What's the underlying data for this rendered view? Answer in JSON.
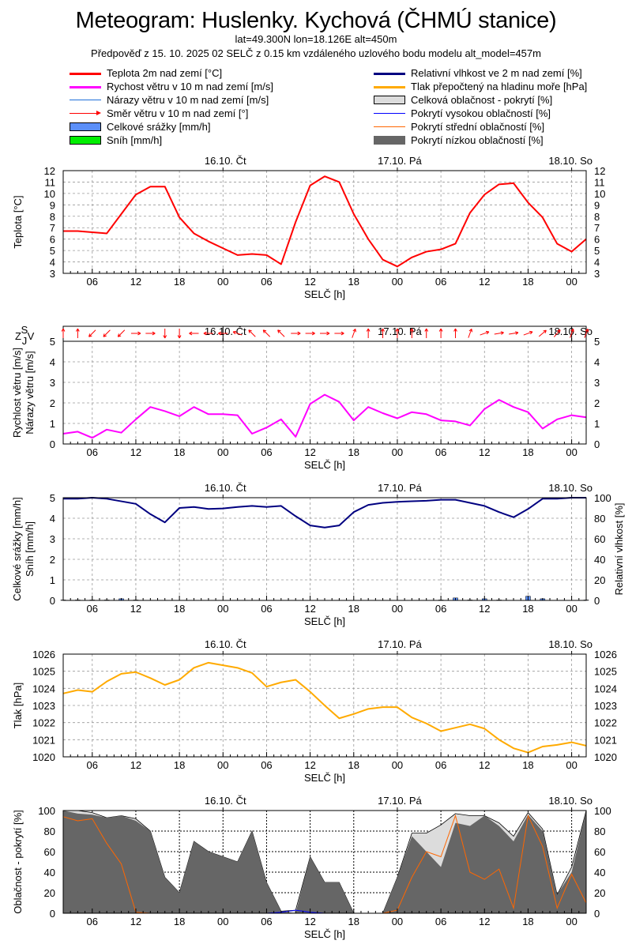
{
  "header": {
    "title": "Meteogram: Huslenky. Kychová (ČHMÚ stanice)",
    "location": "lat=49.300N lon=18.126E alt=450m",
    "forecast_info": "Předpověď z 15. 10. 2025 02 SELČ z 0.15 km vzdáleného uzlového bodu modelu alt_model=457m"
  },
  "legend": {
    "left": [
      {
        "label": "Teplota 2m nad zemí [°C]",
        "color": "#ff0000",
        "style": "thick-line"
      },
      {
        "label": "Rychost větru v 10 m nad zemí [m/s]",
        "color": "#ff00ff",
        "style": "thick-line"
      },
      {
        "label": "Nárazy větru v 10 m nad zemí [m/s]",
        "color": "#1e6fd9",
        "style": "thin-line"
      },
      {
        "label": "Směr větru v 10 m nad zemí [°]",
        "color": "#ff0000",
        "style": "arrow"
      },
      {
        "label": "Celkové srážky [mm/h]",
        "color": "#5b8ff9",
        "style": "box"
      },
      {
        "label": "Sníh [mm/h]",
        "color": "#00ee00",
        "style": "box"
      }
    ],
    "right": [
      {
        "label": "Relativní vlhkost ve 2 m nad zemí [%]",
        "color": "#000080",
        "style": "thick-line"
      },
      {
        "label": "Tlak přepočtený na hladinu moře [hPa]",
        "color": "#ffaa00",
        "style": "thick-line"
      },
      {
        "label": "Celková oblačnost - pokrytí [%]",
        "color": "#dcdcdc",
        "style": "box"
      },
      {
        "label": "Pokrytí vysokou oblačností [%]",
        "color": "#0000ff",
        "style": "thin-line"
      },
      {
        "label": "Pokrytí střední oblačností [%]",
        "color": "#ff6600",
        "style": "thin-line"
      },
      {
        "label": "Pokrytí nízkou oblačností [%]",
        "color": "#666666",
        "style": "fill"
      }
    ]
  },
  "axes": {
    "x_label": "SELČ [h]",
    "x_tick_labels": [
      "06",
      "12",
      "18",
      "00",
      "06",
      "12",
      "18",
      "00",
      "06",
      "12",
      "18",
      "00"
    ],
    "day_labels": [
      "16.10. Čt",
      "17.10. Pá",
      "18.10. So"
    ],
    "compass_labels": {
      "n": "S",
      "w": "Z",
      "s": "J",
      "e": "V"
    }
  },
  "chart_data": [
    {
      "type": "line",
      "x": [
        "15.10. 02",
        "15.10. 04",
        "15.10. 06",
        "15.10. 08",
        "15.10. 10",
        "15.10. 12",
        "15.10. 14",
        "15.10. 16",
        "15.10. 18",
        "15.10. 20",
        "15.10. 22",
        "16.10. 00",
        "16.10. 02",
        "16.10. 04",
        "16.10. 06",
        "16.10. 08",
        "16.10. 10",
        "16.10. 12",
        "16.10. 14",
        "16.10. 16",
        "16.10. 18",
        "16.10. 20",
        "16.10. 22",
        "17.10. 00",
        "17.10. 02",
        "17.10. 04",
        "17.10. 06",
        "17.10. 08",
        "17.10. 10",
        "17.10. 12",
        "17.10. 14",
        "17.10. 16",
        "17.10. 18",
        "17.10. 20",
        "17.10. 22",
        "18.10. 00",
        "18.10. 02"
      ],
      "ylabel": "Teplota [°C]",
      "ylim": [
        3,
        12
      ],
      "yticks": [
        3,
        4,
        5,
        6,
        7,
        8,
        9,
        10,
        11,
        12
      ],
      "grid": true,
      "series": [
        {
          "name": "Teplota 2m nad zemí [°C]",
          "color": "#ff0000",
          "values": [
            6.7,
            6.7,
            6.6,
            6.5,
            8.2,
            9.9,
            10.6,
            10.6,
            7.9,
            6.5,
            5.8,
            5.2,
            4.6,
            4.7,
            4.6,
            3.8,
            7.5,
            10.7,
            11.5,
            11.0,
            8.2,
            6.0,
            4.2,
            3.6,
            4.4,
            4.9,
            5.1,
            5.6,
            8.3,
            9.9,
            10.8,
            10.9,
            9.2,
            7.9,
            5.6,
            4.9,
            6.0
          ]
        }
      ]
    },
    {
      "type": "line",
      "x": [
        "15.10. 02",
        "15.10. 04",
        "15.10. 06",
        "15.10. 08",
        "15.10. 10",
        "15.10. 12",
        "15.10. 14",
        "15.10. 16",
        "15.10. 18",
        "15.10. 20",
        "15.10. 22",
        "16.10. 00",
        "16.10. 02",
        "16.10. 04",
        "16.10. 06",
        "16.10. 08",
        "16.10. 10",
        "16.10. 12",
        "16.10. 14",
        "16.10. 16",
        "16.10. 18",
        "16.10. 20",
        "16.10. 22",
        "17.10. 00",
        "17.10. 02",
        "17.10. 04",
        "17.10. 06",
        "17.10. 08",
        "17.10. 10",
        "17.10. 12",
        "17.10. 14",
        "17.10. 16",
        "17.10. 18",
        "17.10. 20",
        "17.10. 22",
        "18.10. 00",
        "18.10. 02"
      ],
      "ylabel": [
        "Rychlost větru [m/s]",
        "Nárazy větru [m/s]"
      ],
      "ylim": [
        0,
        5
      ],
      "yticks": [
        0,
        1,
        2,
        3,
        4,
        5
      ],
      "grid": true,
      "series": [
        {
          "name": "Rychost větru v 10 m nad zemí [m/s]",
          "color": "#ff00ff",
          "values": [
            0.5,
            0.6,
            0.3,
            0.7,
            0.55,
            1.2,
            1.8,
            1.6,
            1.35,
            1.8,
            1.45,
            1.45,
            1.4,
            0.5,
            0.8,
            1.2,
            0.35,
            1.95,
            2.4,
            2.05,
            1.15,
            1.8,
            1.5,
            1.25,
            1.55,
            1.45,
            1.15,
            1.1,
            0.9,
            1.7,
            2.15,
            1.8,
            1.55,
            0.75,
            1.2,
            1.4,
            1.3
          ]
        }
      ],
      "wind_direction_deg": [
        180,
        180,
        45,
        45,
        45,
        270,
        270,
        0,
        0,
        90,
        90,
        90,
        110,
        135,
        135,
        135,
        270,
        270,
        270,
        270,
        200,
        180,
        180,
        180,
        180,
        180,
        180,
        180,
        200,
        250,
        260,
        260,
        250,
        230,
        220,
        200,
        200
      ]
    },
    {
      "type": "bar+line",
      "x": [
        "15.10. 02",
        "15.10. 04",
        "15.10. 06",
        "15.10. 08",
        "15.10. 10",
        "15.10. 12",
        "15.10. 14",
        "15.10. 16",
        "15.10. 18",
        "15.10. 20",
        "15.10. 22",
        "16.10. 00",
        "16.10. 02",
        "16.10. 04",
        "16.10. 06",
        "16.10. 08",
        "16.10. 10",
        "16.10. 12",
        "16.10. 14",
        "16.10. 16",
        "16.10. 18",
        "16.10. 20",
        "16.10. 22",
        "17.10. 00",
        "17.10. 02",
        "17.10. 04",
        "17.10. 06",
        "17.10. 08",
        "17.10. 10",
        "17.10. 12",
        "17.10. 14",
        "17.10. 16",
        "17.10. 18",
        "17.10. 20",
        "17.10. 22",
        "18.10. 00",
        "18.10. 02"
      ],
      "ylabel": [
        "Celkové srážky [mm/h]",
        "Sníh [mm/h]"
      ],
      "y2label": "Relativní vlhkost [%]",
      "ylim": [
        0,
        5
      ],
      "yticks": [
        0,
        1,
        2,
        3,
        4,
        5
      ],
      "y2lim": [
        0,
        100
      ],
      "y2ticks": [
        0,
        20,
        40,
        60,
        80,
        100
      ],
      "grid": true,
      "series": [
        {
          "name": "Relativní vlhkost ve 2 m nad zemí [%]",
          "color": "#000080",
          "axis": "right",
          "values": [
            99,
            99,
            100,
            99,
            96.5,
            94,
            84,
            76,
            90,
            91,
            89,
            89.5,
            91,
            92,
            91,
            92,
            82,
            73,
            71,
            73,
            86,
            93,
            95,
            96,
            96.5,
            97,
            98,
            98,
            95,
            92,
            86,
            81,
            89,
            99,
            99,
            100,
            100
          ]
        },
        {
          "name": "Celkové srážky [mm/h]",
          "color": "#5b8ff9",
          "axis": "left",
          "type": "bar",
          "values": [
            0.02,
            0.02,
            0.02,
            0.02,
            0.08,
            0.02,
            0,
            0,
            0,
            0,
            0,
            0,
            0,
            0,
            0,
            0,
            0,
            0,
            0,
            0,
            0,
            0,
            0,
            0,
            0,
            0,
            0.02,
            0.12,
            0.02,
            0.08,
            0.02,
            0,
            0.2,
            0.08,
            0,
            0,
            0.02
          ]
        },
        {
          "name": "Sníh [mm/h]",
          "color": "#00ee00",
          "axis": "left",
          "type": "bar",
          "values": [
            0,
            0,
            0,
            0,
            0,
            0,
            0,
            0,
            0,
            0,
            0,
            0,
            0,
            0,
            0,
            0,
            0,
            0,
            0,
            0,
            0,
            0,
            0,
            0,
            0,
            0,
            0,
            0,
            0,
            0,
            0,
            0,
            0,
            0,
            0,
            0,
            0
          ]
        }
      ]
    },
    {
      "type": "line",
      "x": [
        "15.10. 02",
        "15.10. 04",
        "15.10. 06",
        "15.10. 08",
        "15.10. 10",
        "15.10. 12",
        "15.10. 14",
        "15.10. 16",
        "15.10. 18",
        "15.10. 20",
        "15.10. 22",
        "16.10. 00",
        "16.10. 02",
        "16.10. 04",
        "16.10. 06",
        "16.10. 08",
        "16.10. 10",
        "16.10. 12",
        "16.10. 14",
        "16.10. 16",
        "16.10. 18",
        "16.10. 20",
        "16.10. 22",
        "17.10. 00",
        "17.10. 02",
        "17.10. 04",
        "17.10. 06",
        "17.10. 08",
        "17.10. 10",
        "17.10. 12",
        "17.10. 14",
        "17.10. 16",
        "17.10. 18",
        "17.10. 20",
        "17.10. 22",
        "18.10. 00",
        "18.10. 02"
      ],
      "ylabel": "Tlak [hPa]",
      "ylim": [
        1020,
        1026
      ],
      "yticks": [
        1020,
        1021,
        1022,
        1023,
        1024,
        1025,
        1026
      ],
      "grid": true,
      "series": [
        {
          "name": "Tlak přepočtený na hladinu moře [hPa]",
          "color": "#ffaa00",
          "values": [
            1023.7,
            1023.9,
            1023.8,
            1024.4,
            1024.85,
            1024.95,
            1024.6,
            1024.2,
            1024.5,
            1025.2,
            1025.5,
            1025.35,
            1025.2,
            1024.9,
            1024.1,
            1024.35,
            1024.5,
            1023.8,
            1023.0,
            1022.25,
            1022.5,
            1022.8,
            1022.9,
            1022.9,
            1022.3,
            1021.95,
            1021.5,
            1021.7,
            1021.9,
            1021.65,
            1021.0,
            1020.5,
            1020.25,
            1020.6,
            1020.7,
            1020.85,
            1020.65
          ]
        }
      ]
    },
    {
      "type": "area",
      "x": [
        "15.10. 02",
        "15.10. 04",
        "15.10. 06",
        "15.10. 08",
        "15.10. 10",
        "15.10. 12",
        "15.10. 14",
        "15.10. 16",
        "15.10. 18",
        "15.10. 20",
        "15.10. 22",
        "16.10. 00",
        "16.10. 02",
        "16.10. 04",
        "16.10. 06",
        "16.10. 08",
        "16.10. 10",
        "16.10. 12",
        "16.10. 14",
        "16.10. 16",
        "16.10. 18",
        "16.10. 20",
        "16.10. 22",
        "17.10. 00",
        "17.10. 02",
        "17.10. 04",
        "17.10. 06",
        "17.10. 08",
        "17.10. 10",
        "17.10. 12",
        "17.10. 14",
        "17.10. 16",
        "17.10. 18",
        "17.10. 20",
        "17.10. 22",
        "18.10. 00",
        "18.10. 02"
      ],
      "ylabel": "Oblačnost - pokrytí [%]",
      "ylim": [
        0,
        100
      ],
      "yticks": [
        0,
        20,
        40,
        60,
        80,
        100
      ],
      "grid": true,
      "series": [
        {
          "name": "Celková oblačnost - pokrytí [%]",
          "color": "#dcdcdc",
          "values": [
            100,
            100,
            98,
            93,
            95,
            92,
            80,
            35,
            20,
            70,
            60,
            55,
            50,
            80,
            30,
            2,
            3,
            55,
            30,
            30,
            0,
            0,
            0,
            35,
            78,
            78,
            86,
            97,
            95,
            95,
            88,
            75,
            98,
            82,
            18,
            45,
            100
          ]
        },
        {
          "name": "Pokrytí nízkou oblačností [%]",
          "color": "#666666",
          "values": [
            100,
            97,
            96,
            93,
            95,
            90,
            80,
            35,
            20,
            70,
            60,
            55,
            50,
            80,
            30,
            2,
            0,
            55,
            30,
            30,
            0,
            0,
            0,
            35,
            75,
            60,
            45,
            88,
            85,
            95,
            85,
            70,
            96,
            80,
            18,
            40,
            100
          ]
        },
        {
          "name": "Pokrytí střední oblačností [%]",
          "color": "#ff6600",
          "values": [
            94,
            90,
            92,
            68,
            48,
            1,
            0,
            0,
            0,
            0,
            0,
            0,
            0,
            0,
            0,
            0,
            0,
            0,
            0,
            0,
            0,
            0,
            0,
            3,
            35,
            60,
            55,
            95,
            40,
            33,
            43,
            5,
            95,
            65,
            5,
            38,
            10
          ]
        },
        {
          "name": "Pokrytí vysokou oblačností [%]",
          "color": "#0000ff",
          "values": [
            0,
            0,
            0,
            0,
            0,
            0,
            0,
            0,
            0,
            0,
            0,
            0,
            0,
            0,
            0,
            1,
            3,
            1,
            0,
            0,
            0,
            0,
            0,
            0,
            0,
            0,
            0,
            0,
            0,
            0,
            0,
            0,
            0,
            0,
            0,
            0,
            0
          ]
        }
      ]
    }
  ]
}
